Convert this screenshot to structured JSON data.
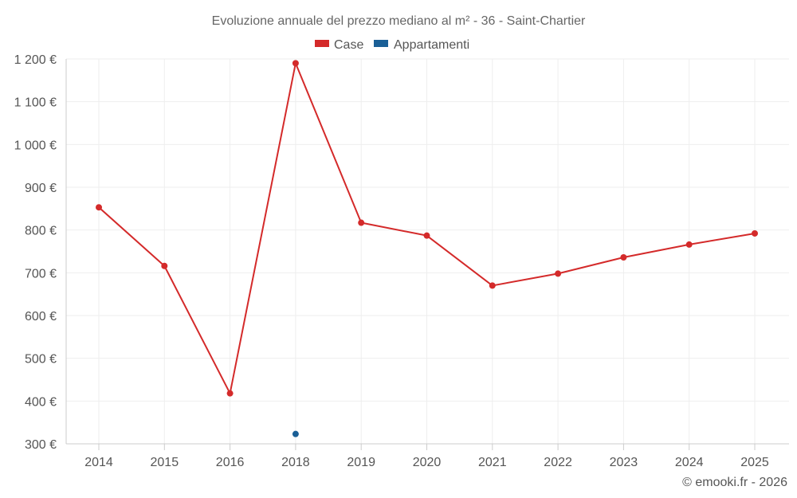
{
  "chart_data": {
    "type": "line",
    "title": "Evoluzione annuale del prezzo mediano al m² - 36 - Saint-Chartier",
    "xlabel": "",
    "ylabel": "",
    "categories": [
      "2014",
      "2015",
      "2016",
      "2018",
      "2019",
      "2020",
      "2021",
      "2022",
      "2023",
      "2024",
      "2025"
    ],
    "ylim": [
      300,
      1200
    ],
    "yticks": [
      300,
      400,
      500,
      600,
      700,
      800,
      900,
      1000,
      1100,
      1200
    ],
    "ytick_labels": [
      "300 €",
      "400 €",
      "500 €",
      "600 €",
      "700 €",
      "800 €",
      "900 €",
      "1 000 €",
      "1 100 €",
      "1 200 €"
    ],
    "grid": true,
    "legend_position": "top-center",
    "series": [
      {
        "name": "Case",
        "color": "#d42a2a",
        "values": [
          853,
          716,
          418,
          1190,
          817,
          787,
          670,
          698,
          736,
          766,
          792
        ]
      },
      {
        "name": "Appartamenti",
        "color": "#1a5f96",
        "values": [
          null,
          null,
          null,
          323,
          null,
          null,
          null,
          null,
          null,
          null,
          null
        ]
      }
    ]
  },
  "footer": "© emooki.fr - 2026"
}
